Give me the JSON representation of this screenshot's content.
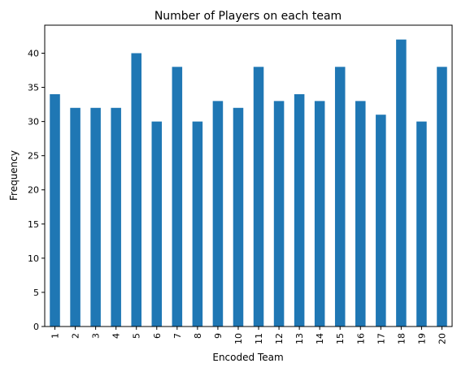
{
  "chart_data": {
    "type": "bar",
    "title": "Number of Players on each team",
    "xlabel": "Encoded Team",
    "ylabel": "Frequency",
    "categories": [
      "1",
      "2",
      "3",
      "4",
      "5",
      "6",
      "7",
      "8",
      "9",
      "10",
      "11",
      "12",
      "13",
      "14",
      "15",
      "16",
      "17",
      "18",
      "19",
      "20"
    ],
    "values": [
      34,
      32,
      32,
      32,
      40,
      30,
      38,
      30,
      33,
      32,
      38,
      33,
      34,
      33,
      38,
      33,
      31,
      42,
      30,
      38
    ],
    "yticks": [
      0,
      5,
      10,
      15,
      20,
      25,
      30,
      35,
      40
    ],
    "ylim": [
      0,
      44.1
    ],
    "bar_color": "#1f77b4",
    "grid": false,
    "legend": "none"
  }
}
